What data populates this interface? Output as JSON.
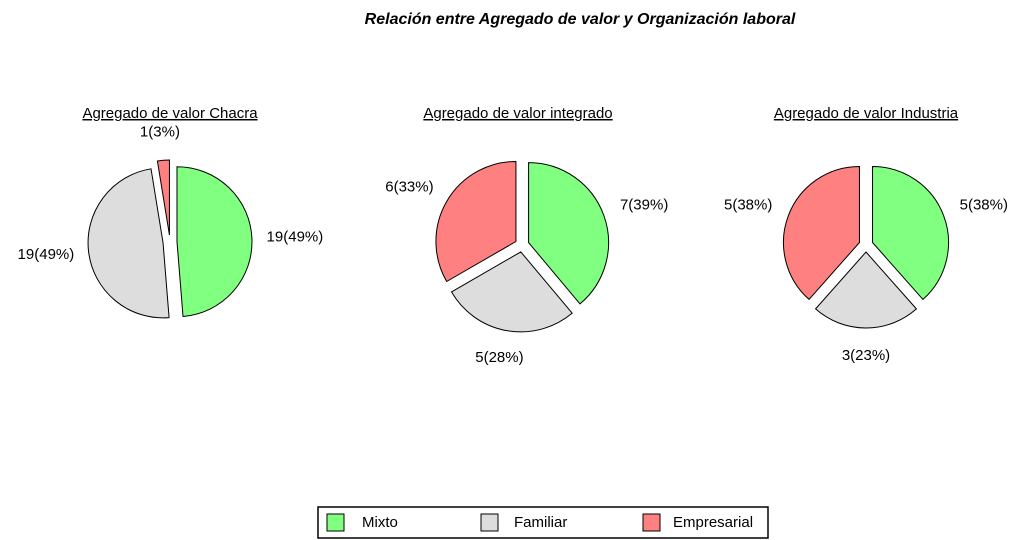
{
  "title": "Relación entre Agregado de valor y Organización laboral",
  "chart_data": [
    {
      "type": "pie",
      "title": "Agregado de valor Chacra",
      "categories": [
        "Mixto",
        "Familiar",
        "Empresarial"
      ],
      "values": [
        19,
        19,
        1
      ],
      "value_labels": [
        "19(49%)",
        "19(49%)",
        "1(3%)"
      ],
      "colors": [
        "#80ff80",
        "#dddddd",
        "#ff8080"
      ]
    },
    {
      "type": "pie",
      "title": "Agregado de valor integrado",
      "categories": [
        "Mixto",
        "Familiar",
        "Empresarial"
      ],
      "values": [
        7,
        5,
        6
      ],
      "value_labels": [
        "7(39%)",
        "5(28%)",
        "6(33%)"
      ],
      "colors": [
        "#80ff80",
        "#dddddd",
        "#ff8080"
      ]
    },
    {
      "type": "pie",
      "title": "Agregado de valor Industria",
      "categories": [
        "Mixto",
        "Familiar",
        "Empresarial"
      ],
      "values": [
        5,
        3,
        5
      ],
      "value_labels": [
        "5(38%)",
        "3(23%)",
        "5(38%)"
      ],
      "colors": [
        "#80ff80",
        "#dddddd",
        "#ff8080"
      ]
    }
  ]
}
